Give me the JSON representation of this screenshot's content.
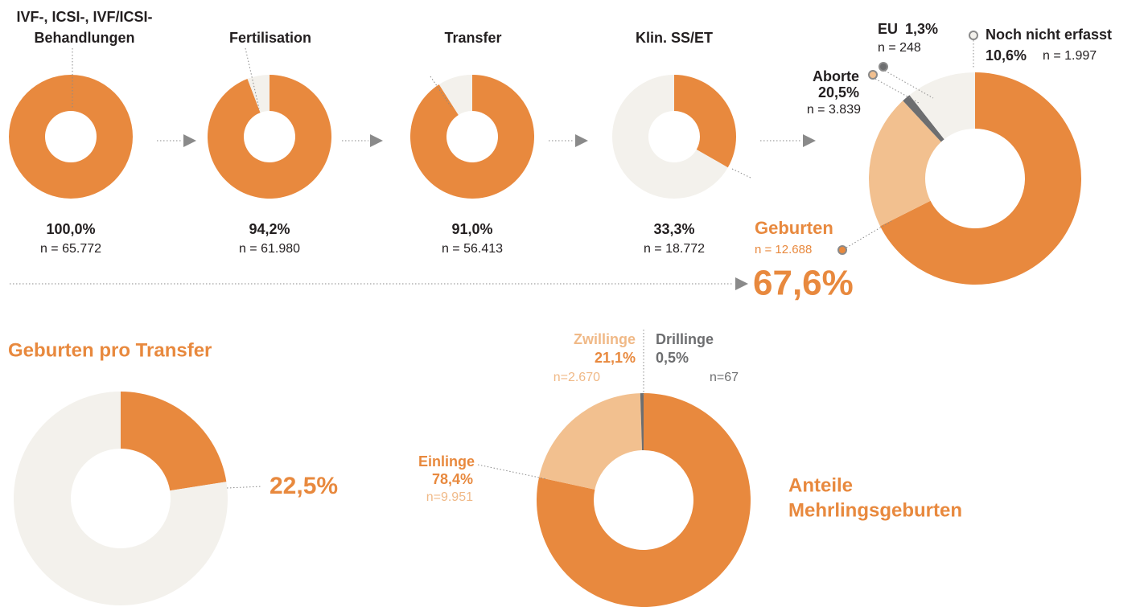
{
  "chart_data": [
    {
      "type": "pie",
      "title": [
        "IVF-, ICSI-, IVF/ICSI-",
        "Behandlungen"
      ],
      "values": [
        100
      ],
      "colors": [
        "#e8893e"
      ],
      "value_label": "100,0%",
      "n_label": "n = 65.772"
    },
    {
      "type": "pie",
      "title": "Fertilisation",
      "values": [
        94.2,
        5.8
      ],
      "colors": [
        "#e8893e",
        "#f3f1ec"
      ],
      "value_label": "94,2%",
      "n_label": "n = 61.980"
    },
    {
      "type": "pie",
      "title": "Transfer",
      "values": [
        91.0,
        9.0
      ],
      "colors": [
        "#e8893e",
        "#f3f1ec"
      ],
      "value_label": "91,0%",
      "n_label": "n = 56.413"
    },
    {
      "type": "pie",
      "title": "Klin. SS/ET",
      "values": [
        33.3,
        66.7
      ],
      "colors": [
        "#e8893e",
        "#f3f1ec"
      ],
      "value_label": "33,3%",
      "n_label": "n = 18.772"
    },
    {
      "type": "pie",
      "categories": [
        "Geburten",
        "Aborte",
        "EU",
        "Noch nicht erfasst"
      ],
      "values": [
        67.6,
        20.5,
        1.3,
        10.6
      ],
      "value_labels": [
        "67,6%",
        "20,5%",
        "1,3%",
        "10,6%"
      ],
      "n_labels": [
        "n = 12.688",
        "n = 3.839",
        "n = 248",
        "n = 1.997"
      ],
      "colors": [
        "#e8893e",
        "#f2c08f",
        "#6d6e70",
        "#f3f1ec"
      ]
    },
    {
      "type": "pie",
      "title": "Geburten pro Transfer",
      "values": [
        22.5,
        77.5
      ],
      "colors": [
        "#e8893e",
        "#f3f1ec"
      ],
      "value_label": "22,5%"
    },
    {
      "type": "pie",
      "title": [
        "Anteile",
        "Mehrlingsgeburten"
      ],
      "categories": [
        "Einlinge",
        "Zwillinge",
        "Drillinge"
      ],
      "values": [
        78.4,
        21.1,
        0.5
      ],
      "value_labels": [
        "78,4%",
        "21,1%",
        "0,5%"
      ],
      "n_labels": [
        "n=9.951",
        "n=2.670",
        "n=67"
      ],
      "colors": [
        "#e8893e",
        "#f2c08f",
        "#6d6e70"
      ]
    }
  ]
}
